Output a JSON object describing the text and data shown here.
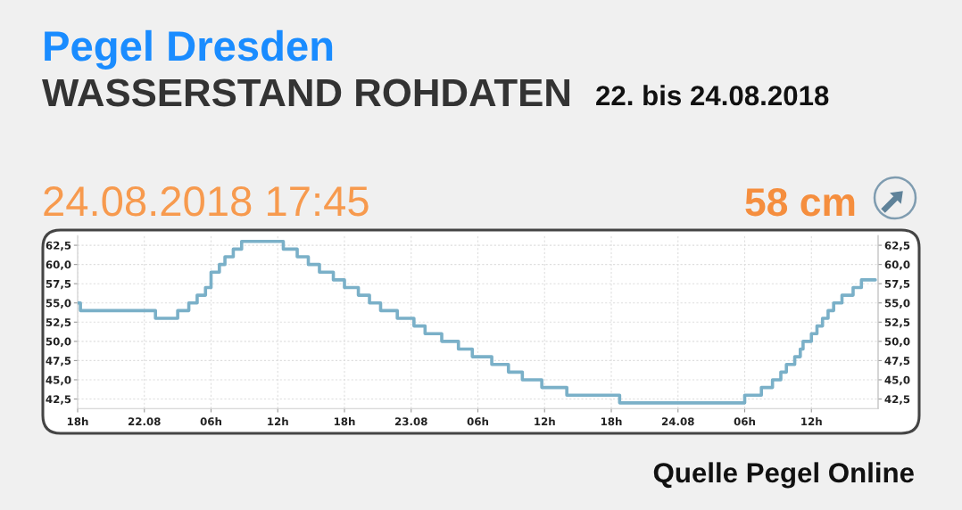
{
  "chart_data": {
    "type": "step",
    "title": "Pegel Dresden",
    "subtitle": "WASSERSTAND ROHDATEN",
    "annotations": [
      "22. bis 24.08.2018",
      "24.08.2018 17:45",
      "58 cm",
      "Quelle Pegel Online"
    ],
    "x": [
      "2018-08-21T18:00",
      "2018-08-21T18:15",
      "2018-08-22T01:00",
      "2018-08-22T03:00",
      "2018-08-22T04:00",
      "2018-08-22T04:45",
      "2018-08-22T05:30",
      "2018-08-22T06:00",
      "2018-08-22T06:45",
      "2018-08-22T07:15",
      "2018-08-22T08:00",
      "2018-08-22T08:45",
      "2018-08-22T12:30",
      "2018-08-22T13:45",
      "2018-08-22T14:45",
      "2018-08-22T15:45",
      "2018-08-22T17:00",
      "2018-08-22T18:00",
      "2018-08-22T19:15",
      "2018-08-22T20:15",
      "2018-08-22T21:15",
      "2018-08-22T22:45",
      "2018-08-23T00:15",
      "2018-08-23T01:15",
      "2018-08-23T02:45",
      "2018-08-23T04:15",
      "2018-08-23T05:30",
      "2018-08-23T07:15",
      "2018-08-23T08:45",
      "2018-08-23T10:00",
      "2018-08-23T11:45",
      "2018-08-23T14:00",
      "2018-08-23T18:45",
      "2018-08-24T06:00",
      "2018-08-24T07:30",
      "2018-08-24T08:30",
      "2018-08-24T09:15",
      "2018-08-24T09:45",
      "2018-08-24T10:30",
      "2018-08-24T11:00",
      "2018-08-24T11:15",
      "2018-08-24T12:00",
      "2018-08-24T12:30",
      "2018-08-24T13:00",
      "2018-08-24T13:30",
      "2018-08-24T14:00",
      "2018-08-24T14:45",
      "2018-08-24T15:45",
      "2018-08-24T16:30",
      "2018-08-24T17:45"
    ],
    "series": [
      {
        "color": "#7ab0c8",
        "values": [
          55,
          54,
          53,
          54,
          55,
          56,
          57,
          59,
          60,
          61,
          62,
          63,
          62,
          61,
          60,
          59,
          58,
          57,
          56,
          55,
          54,
          53,
          52,
          51,
          50,
          49,
          48,
          47,
          46,
          45,
          44,
          43,
          42,
          43,
          44,
          45,
          46,
          47,
          48,
          49,
          50,
          51,
          52,
          53,
          54,
          55,
          56,
          57,
          58,
          58
        ]
      }
    ],
    "xlim": [
      "2018-08-21T18:00",
      "2018-08-24T18:00"
    ],
    "xticks": [
      {
        "value": "2018-08-21T18:00",
        "label": "18h"
      },
      {
        "value": "2018-08-22T00:00",
        "label": "22.08"
      },
      {
        "value": "2018-08-22T06:00",
        "label": "06h"
      },
      {
        "value": "2018-08-22T12:00",
        "label": "12h"
      },
      {
        "value": "2018-08-22T18:00",
        "label": "18h"
      },
      {
        "value": "2018-08-23T00:00",
        "label": "23.08"
      },
      {
        "value": "2018-08-23T06:00",
        "label": "06h"
      },
      {
        "value": "2018-08-23T12:00",
        "label": "12h"
      },
      {
        "value": "2018-08-23T18:00",
        "label": "18h"
      },
      {
        "value": "2018-08-24T00:00",
        "label": "24.08"
      },
      {
        "value": "2018-08-24T06:00",
        "label": "06h"
      },
      {
        "value": "2018-08-24T12:00",
        "label": "12h"
      }
    ],
    "ylim": [
      41.25,
      63.75
    ],
    "yticks": [
      {
        "value": 42.5,
        "label": "42,5"
      },
      {
        "value": 45,
        "label": "45,0"
      },
      {
        "value": 47.5,
        "label": "47,5"
      },
      {
        "value": 50,
        "label": "50,0"
      },
      {
        "value": 52.5,
        "label": "52,5"
      },
      {
        "value": 55,
        "label": "55,0"
      },
      {
        "value": 57.5,
        "label": "57,5"
      },
      {
        "value": 60,
        "label": "60,0"
      },
      {
        "value": 62.5,
        "label": "62,5"
      }
    ],
    "y2lim": [
      41.25,
      63.75
    ],
    "y2ticks": [
      {
        "value": 42.5,
        "label": "42,5"
      },
      {
        "value": 45,
        "label": "45,0"
      },
      {
        "value": 47.5,
        "label": "47,5"
      },
      {
        "value": 50,
        "label": "50,0"
      },
      {
        "value": 52.5,
        "label": "52,5"
      },
      {
        "value": 55,
        "label": "55,0"
      },
      {
        "value": 57.5,
        "label": "57,5"
      },
      {
        "value": 60,
        "label": "60,0"
      },
      {
        "value": 62.5,
        "label": "62,5"
      }
    ],
    "grid": true
  }
}
